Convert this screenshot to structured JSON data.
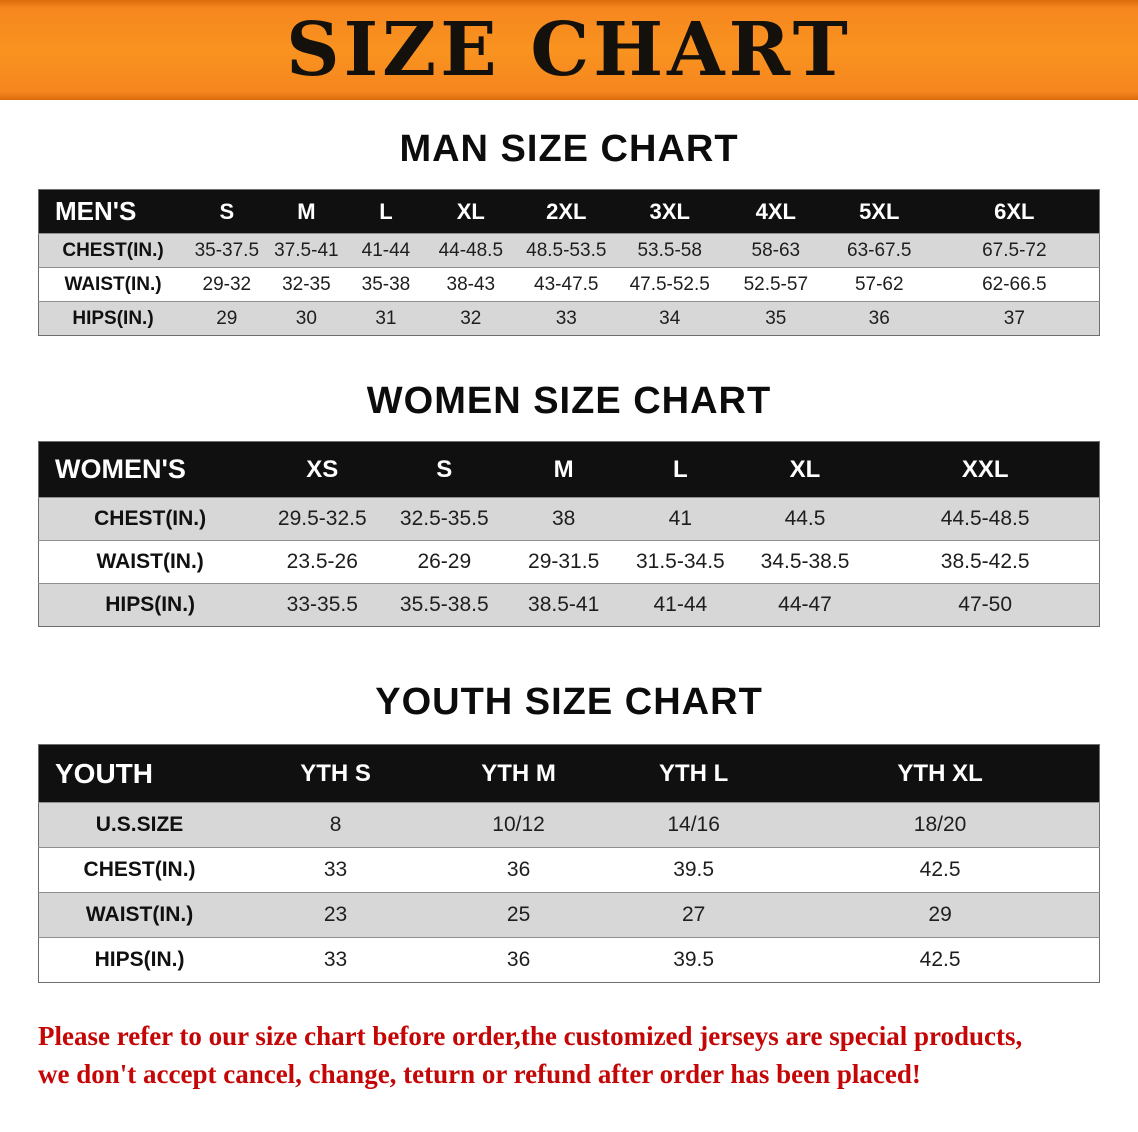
{
  "banner": {
    "title": "SIZE CHART",
    "bg_color": "#F6861F"
  },
  "chart_data": [
    {
      "type": "table",
      "title": "MAN SIZE CHART",
      "columns": [
        "MEN'S",
        "S",
        "M",
        "L",
        "XL",
        "2XL",
        "3XL",
        "4XL",
        "5XL",
        "6XL"
      ],
      "rows": [
        {
          "label": "CHEST(IN.)",
          "values": [
            "35-37.5",
            "37.5-41",
            "41-44",
            "44-48.5",
            "48.5-53.5",
            "53.5-58",
            "58-63",
            "63-67.5",
            "67.5-72"
          ]
        },
        {
          "label": "WAIST(IN.)",
          "values": [
            "29-32",
            "32-35",
            "35-38",
            "38-43",
            "43-47.5",
            "47.5-52.5",
            "52.5-57",
            "57-62",
            "62-66.5"
          ]
        },
        {
          "label": "HIPS(IN.)",
          "values": [
            "29",
            "30",
            "31",
            "32",
            "33",
            "34",
            "35",
            "36",
            "37"
          ]
        }
      ]
    },
    {
      "type": "table",
      "title": "WOMEN SIZE CHART",
      "columns": [
        "WOMEN'S",
        "XS",
        "S",
        "M",
        "L",
        "XL",
        "XXL"
      ],
      "rows": [
        {
          "label": "CHEST(IN.)",
          "values": [
            "29.5-32.5",
            "32.5-35.5",
            "38",
            "41",
            "44.5",
            "44.5-48.5"
          ]
        },
        {
          "label": "WAIST(IN.)",
          "values": [
            "23.5-26",
            "26-29",
            "29-31.5",
            "31.5-34.5",
            "34.5-38.5",
            "38.5-42.5"
          ]
        },
        {
          "label": "HIPS(IN.)",
          "values": [
            "33-35.5",
            "35.5-38.5",
            "38.5-41",
            "41-44",
            "44-47",
            "47-50"
          ]
        }
      ]
    },
    {
      "type": "table",
      "title": "YOUTH SIZE CHART",
      "columns": [
        "YOUTH",
        "YTH S",
        "YTH M",
        "YTH L",
        "YTH XL"
      ],
      "rows": [
        {
          "label": "U.S.SIZE",
          "values": [
            "8",
            "10/12",
            "14/16",
            "18/20"
          ]
        },
        {
          "label": "CHEST(IN.)",
          "values": [
            "33",
            "36",
            "39.5",
            "42.5"
          ]
        },
        {
          "label": "WAIST(IN.)",
          "values": [
            "23",
            "25",
            "27",
            "29"
          ]
        },
        {
          "label": "HIPS(IN.)",
          "values": [
            "33",
            "36",
            "39.5",
            "42.5"
          ]
        }
      ]
    }
  ],
  "disclaimer": {
    "line1": "Please refer to our size chart before order,the customized jerseys are special products,",
    "line2": "we don't accept cancel, change, teturn or refund after order has been placed!",
    "color": "#C40606"
  },
  "colors": {
    "header_bg": "#101010",
    "row_alt": "#D7D7D7",
    "banner_orange": "#F6861F"
  }
}
